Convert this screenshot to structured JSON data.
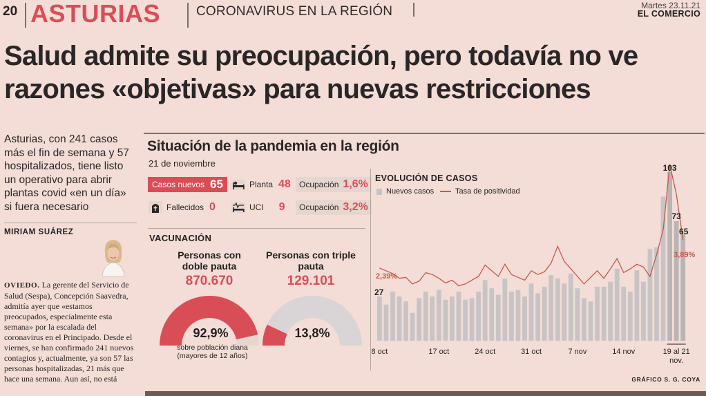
{
  "header": {
    "page_number": "20",
    "section": "ASTURIAS",
    "topic": "CORONAVIRUS EN LA REGIÓN",
    "date": "Martes 23.11.21",
    "newspaper": "EL COMERCIO"
  },
  "headline": "Salud admite su preocupación, pero todavía no ve razones «objetivas» para nuevas restricciones",
  "lede": "Asturias, con 241 casos más el fin de semana y 57 hospitalizados, tiene listo un operativo para abrir plantas covid «en un día» si fuera necesario",
  "byline": "MIRIAM SUÁREZ",
  "body": {
    "place": "OVIEDO.",
    "text": "La gerente del Servicio de Salud (Sespa), Concepción Saavedra, admitía ayer que «estamos preocupados, especialmente esta semana» por la escalada del coronavirus en el Principado. Desde el viernes, se han confirmado 241 nuevos contagios y, actualmente, ya son 57 las personas hospitalizadas, 21 más que hace una semana. Aun así, no está"
  },
  "graphic": {
    "title": "Situación de la pandemia en la región",
    "date": "21 de noviembre",
    "stats": {
      "new_cases_label": "Casos nuevos",
      "new_cases_value": "65",
      "deaths_label": "Fallecidos",
      "deaths_value": "0",
      "ward_label": "Planta",
      "ward_value": "48",
      "ward_occ_label": "Ocupación",
      "ward_occ_value": "1,6%",
      "icu_label": "UCI",
      "icu_value": "9",
      "icu_occ_label": "Ocupación",
      "icu_occ_value": "3,2%"
    },
    "vaccination": {
      "title": "VACUNACIÓN",
      "double_label": "Personas con doble pauta",
      "double_value": "870.670",
      "double_pct": "92,9%",
      "double_pct_value": 92.9,
      "triple_label": "Personas con triple pauta",
      "triple_value": "129.101",
      "triple_pct": "13,8%",
      "triple_pct_value": 13.8,
      "note": "sobre población diana (mayores de 12 años)"
    },
    "credit": "GRÁFICO S. G. COYA"
  },
  "colors": {
    "accent_red": "#d94e56",
    "bar_grey": "#c8c4c5",
    "line_red": "#c9574a",
    "paper": "#f3ddd6"
  },
  "icons": [
    "user-plus-icon",
    "hospital-bed-icon",
    "cross-tombstone-icon",
    "icu-bed-icon",
    "reporter-photo"
  ],
  "chart_data": {
    "type": "bar",
    "title": "EVOLUCIÓN DE CASOS",
    "series": [
      {
        "name": "Nuevos casos",
        "type": "bar",
        "values": [
          27,
          22,
          30,
          27,
          24,
          17,
          26,
          30,
          27,
          31,
          25,
          27,
          30,
          25,
          26,
          30,
          37,
          32,
          28,
          38,
          30,
          31,
          27,
          35,
          29,
          33,
          40,
          38,
          35,
          41,
          32,
          26,
          24,
          33,
          33,
          36,
          44,
          33,
          30,
          43,
          36,
          56,
          57,
          88,
          103,
          73,
          65
        ]
      },
      {
        "name": "Tasa de positividad",
        "type": "line",
        "values": [
          2.39,
          2.25,
          2.1,
          1.85,
          1.9,
          1.55,
          1.7,
          2.15,
          2.05,
          1.85,
          1.6,
          1.75,
          1.45,
          1.55,
          1.75,
          1.95,
          2.55,
          2.25,
          1.95,
          2.6,
          2.05,
          1.9,
          1.75,
          2.25,
          2.05,
          2.2,
          2.65,
          3.55,
          2.75,
          2.35,
          1.95,
          1.55,
          1.9,
          2.25,
          1.85,
          2.35,
          2.9,
          2.15,
          2.35,
          2.6,
          2.45,
          1.95,
          3.1,
          4.45,
          7.9,
          6.3,
          3.89
        ]
      }
    ],
    "annotations": {
      "first_bar": "27",
      "first_rate": "2,39%",
      "peak": "103",
      "second_last": "73",
      "last_bar": "65",
      "last_rate": "3,89%"
    },
    "x_tick_labels": [
      "8 oct",
      "17 oct",
      "24 oct",
      "31 oct",
      "7 nov",
      "14 nov",
      "19 al 21 nov."
    ],
    "legend": "top-left"
  }
}
